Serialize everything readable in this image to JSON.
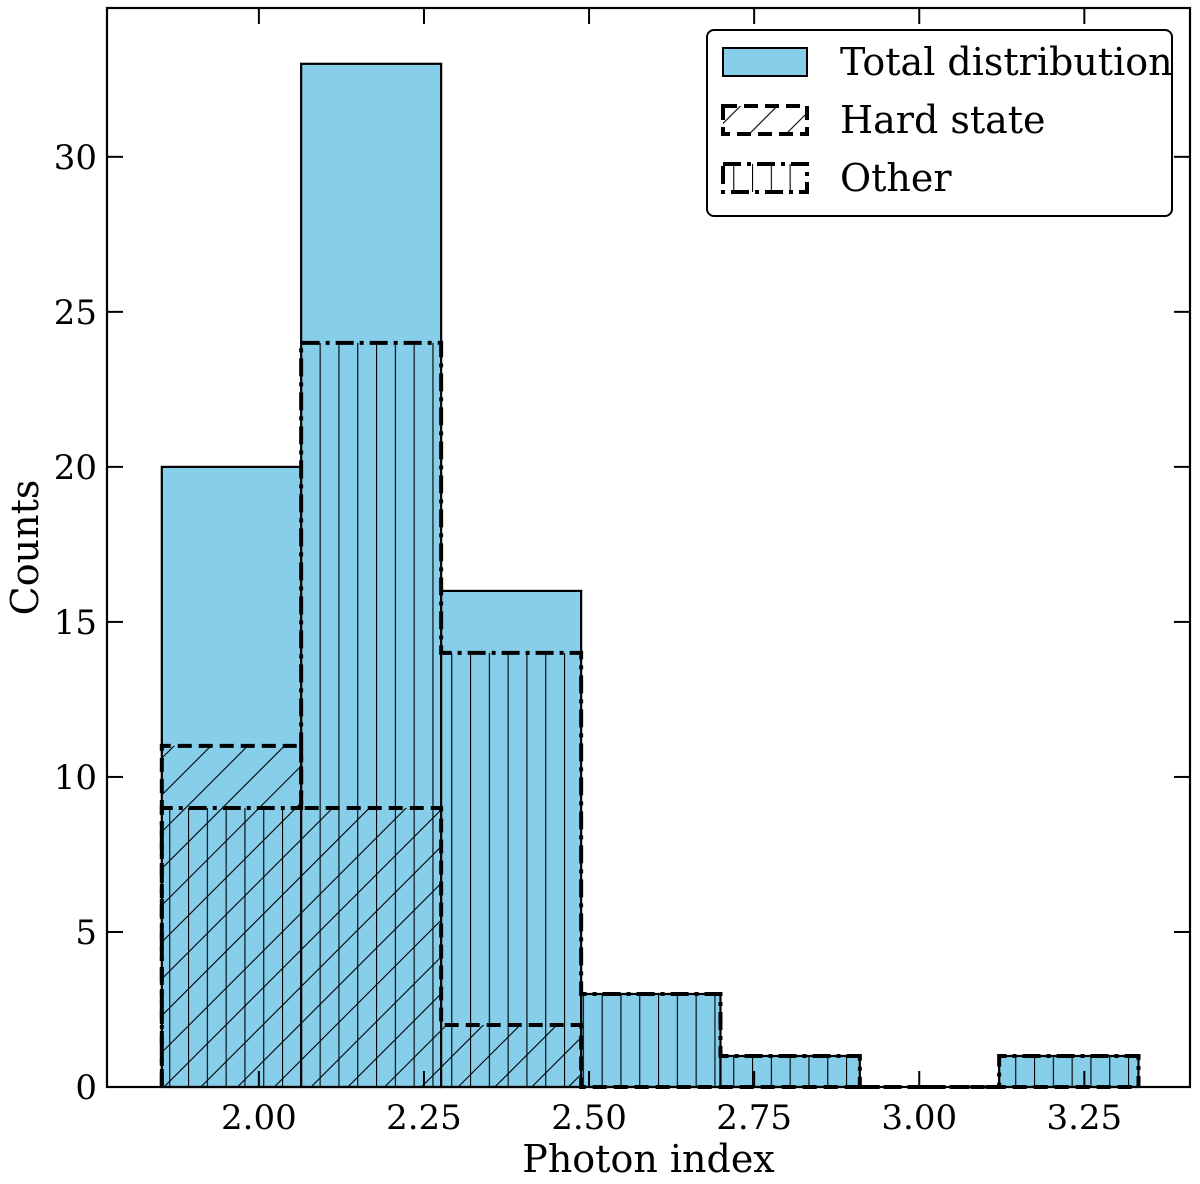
{
  "chart_data": {
    "type": "bar",
    "title": "",
    "xlabel": "Photon index",
    "ylabel": "Counts",
    "xlim": [
      1.77,
      3.41
    ],
    "ylim": [
      0,
      34.8
    ],
    "xticks": [
      2.0,
      2.25,
      2.5,
      2.75,
      3.0,
      3.25
    ],
    "xtick_labels": [
      "2.00",
      "2.25",
      "2.50",
      "2.75",
      "3.00",
      "3.25"
    ],
    "yticks": [
      0,
      5,
      10,
      15,
      20,
      25,
      30
    ],
    "ytick_labels": [
      "0",
      "5",
      "10",
      "15",
      "20",
      "25",
      "30"
    ],
    "bin_edges": [
      1.853,
      2.064,
      2.276,
      2.488,
      2.699,
      2.91,
      3.121,
      3.332
    ],
    "series": [
      {
        "name": "Total distribution",
        "values": [
          20,
          33,
          16,
          3,
          1,
          0,
          1
        ],
        "fill": "#87ceeb",
        "style": "solid"
      },
      {
        "name": "Hard state",
        "values": [
          11,
          9,
          2,
          0,
          0,
          0,
          0
        ],
        "fill": "none",
        "style": "dashed",
        "hatch": "diagonal"
      },
      {
        "name": "Other",
        "values": [
          9,
          24,
          14,
          3,
          1,
          0,
          1
        ],
        "fill": "none",
        "style": "dashdot",
        "hatch": "vertical"
      }
    ],
    "legend_position": "top-right",
    "grid": false
  }
}
